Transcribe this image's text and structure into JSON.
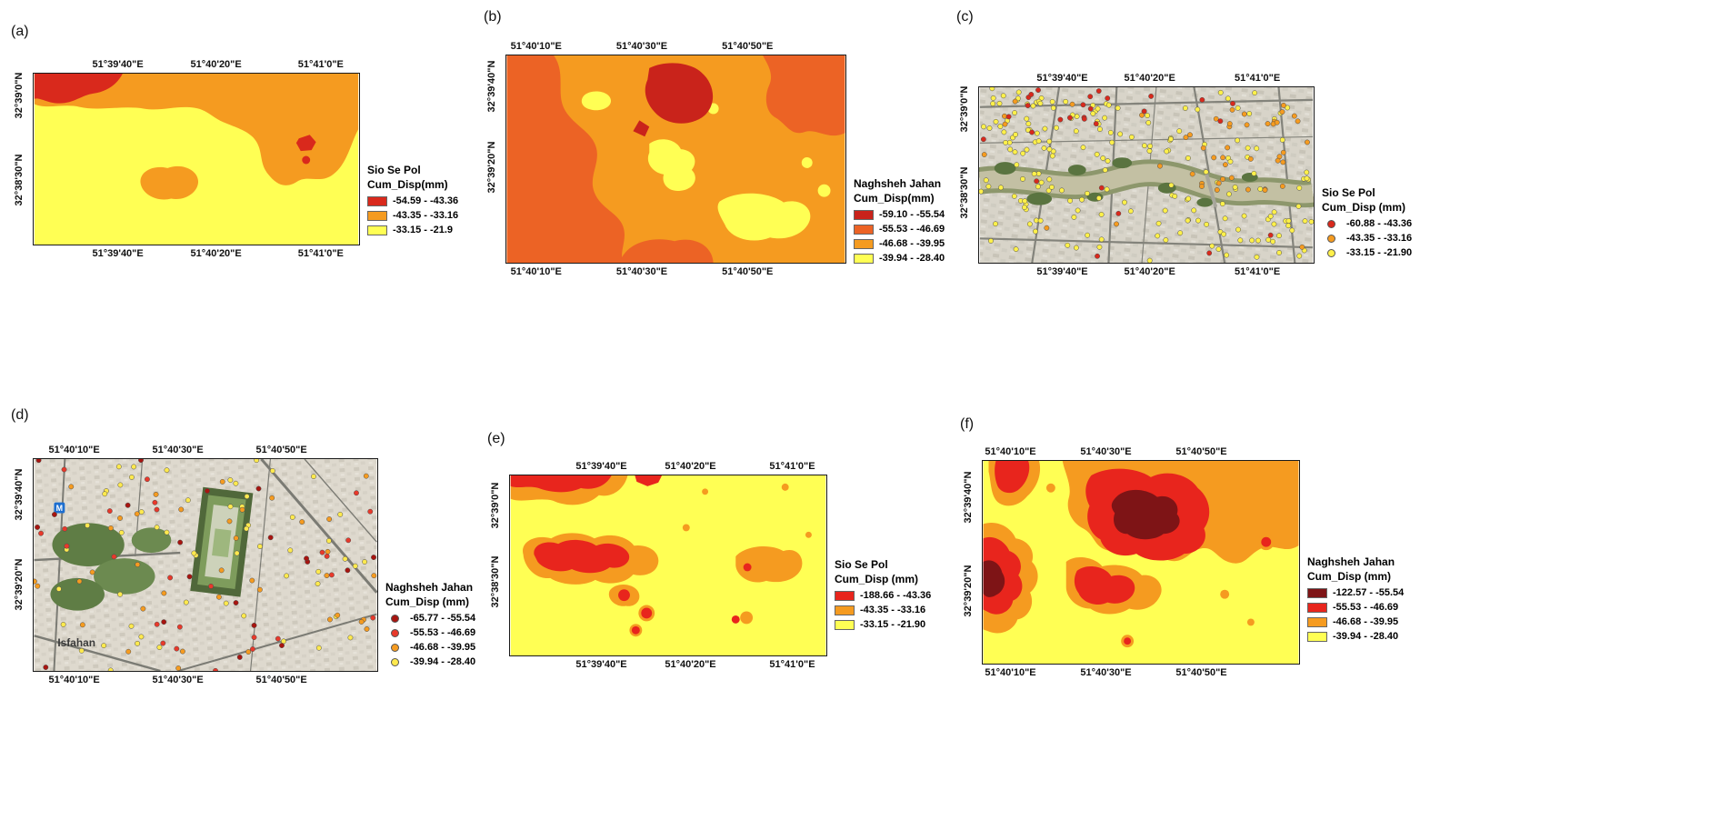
{
  "figure": {
    "background": "#ffffff"
  },
  "panels": {
    "a": {
      "label": "(a)",
      "x_ticks": [
        "51°39'40\"E",
        "51°40'20\"E",
        "51°41'0\"E"
      ],
      "y_ticks": [
        "32°39'0\"N",
        "32°38'30\"N"
      ],
      "legend": {
        "title_line1": "Sio Se Pol",
        "title_line2": "Cum_Disp(mm)",
        "items": [
          {
            "label": "-54.59 - -43.36",
            "color": "#D9291C"
          },
          {
            "label": "-43.35 - -33.16",
            "color": "#F59B20"
          },
          {
            "label": "-33.15 - -21.9",
            "color": "#FFFF54"
          }
        ]
      }
    },
    "b": {
      "label": "(b)",
      "x_ticks": [
        "51°40'10\"E",
        "51°40'30\"E",
        "51°40'50\"E"
      ],
      "y_ticks": [
        "32°39'40\"N",
        "32°39'20\"N"
      ],
      "legend": {
        "title_line1": "Naghsheh Jahan",
        "title_line2": "Cum_Disp(mm)",
        "items": [
          {
            "label": "-59.10 - -55.54",
            "color": "#C9231B"
          },
          {
            "label": "-55.53 - -46.69",
            "color": "#EC6325"
          },
          {
            "label": "-46.68 - -39.95",
            "color": "#F59B20"
          },
          {
            "label": "-39.94 - -28.40",
            "color": "#FFFF54"
          }
        ]
      }
    },
    "c": {
      "label": "(c)",
      "x_ticks": [
        "51°39'40\"E",
        "51°40'20\"E",
        "51°41'0\"E"
      ],
      "y_ticks": [
        "32°39'0\"N",
        "32°38'30\"N"
      ],
      "legend": {
        "title_line1": "Sio Se Pol",
        "title_line2": "Cum_Disp (mm)",
        "items": [
          {
            "label": "-60.88 - -43.36",
            "color": "#D9291C"
          },
          {
            "label": "-43.35 - -33.16",
            "color": "#F59B20"
          },
          {
            "label": "-33.15 - -21.90",
            "color": "#FFF04A"
          }
        ]
      },
      "dots": {
        "seed": 13,
        "r": 2.7,
        "classes": [
          {
            "item": 2,
            "count": 120
          },
          {
            "item": 2,
            "count": 50,
            "region": [
              0.0,
              0.05,
              0.4,
              0.65
            ]
          },
          {
            "item": 2,
            "count": 30,
            "region": [
              0.5,
              0.3,
              1.0,
              0.9
            ]
          },
          {
            "item": 1,
            "count": 34,
            "region": [
              0.6,
              0.1,
              1.0,
              0.6
            ]
          },
          {
            "item": 1,
            "count": 14
          },
          {
            "item": 0,
            "count": 16,
            "region": [
              0.0,
              0.0,
              0.4,
              0.3
            ]
          },
          {
            "item": 0,
            "count": 12
          }
        ]
      }
    },
    "d": {
      "label": "(d)",
      "x_ticks": [
        "51°40'10\"E",
        "51°40'30\"E",
        "51°40'50\"E"
      ],
      "y_ticks": [
        "32°39'40\"N",
        "32°39'20\"N"
      ],
      "map_label": "Isfahan",
      "metro_label": "M",
      "legend": {
        "title_line1": "Naghsheh Jahan",
        "title_line2": "Cum_Disp (mm)",
        "items": [
          {
            "label": "-65.77 - -55.54",
            "color": "#A81510"
          },
          {
            "label": "-55.53 - -46.69",
            "color": "#E8392B"
          },
          {
            "label": "-46.68 - -39.95",
            "color": "#F59B20"
          },
          {
            "label": "-39.94 - -28.40",
            "color": "#FFE94E"
          }
        ]
      },
      "dots": {
        "seed": 29,
        "r": 2.7,
        "classes": [
          {
            "item": 3,
            "count": 55
          },
          {
            "item": 2,
            "count": 38
          },
          {
            "item": 1,
            "count": 26
          },
          {
            "item": 0,
            "count": 20
          }
        ]
      }
    },
    "e": {
      "label": "(e)",
      "x_ticks": [
        "51°39'40\"E",
        "51°40'20\"E",
        "51°41'0\"E"
      ],
      "y_ticks": [
        "32°39'0\"N",
        "32°38'30\"N"
      ],
      "legend": {
        "title_line1": "Sio Se Pol",
        "title_line2": "Cum_Disp (mm)",
        "items": [
          {
            "label": "-188.66 - -43.36",
            "color": "#E8251D"
          },
          {
            "label": "-43.35 - -33.16",
            "color": "#F59B20"
          },
          {
            "label": "-33.15 - -21.90",
            "color": "#FFFF54"
          }
        ]
      }
    },
    "f": {
      "label": "(f)",
      "x_ticks": [
        "51°40'10\"E",
        "51°40'30\"E",
        "51°40'50\"E"
      ],
      "y_ticks": [
        "32°39'40\"N",
        "32°39'20\"N"
      ],
      "legend": {
        "title_line1": "Naghsheh Jahan",
        "title_line2": "Cum_Disp (mm)",
        "items": [
          {
            "label": "-122.57 - -55.54",
            "color": "#7E1416"
          },
          {
            "label": "-55.53 - -46.69",
            "color": "#E8251D"
          },
          {
            "label": "-46.68 - -39.95",
            "color": "#F59B20"
          },
          {
            "label": "-39.94 - -28.40",
            "color": "#FFFF54"
          }
        ]
      }
    }
  }
}
